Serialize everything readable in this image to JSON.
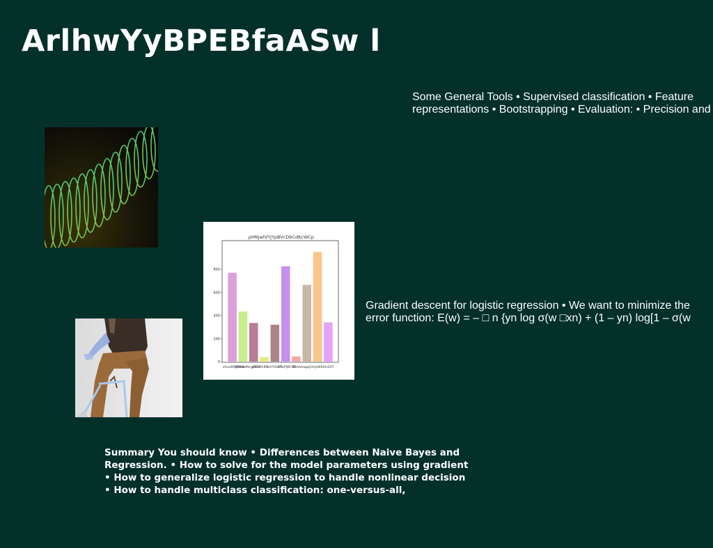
{
  "slide": {
    "title": "ArlhwYyBPEBfaASw l",
    "text_top": [
      "Some General Tools • Supervised classification • Feature",
      "representations • Bootstrapping • Evaluation: • Precision and"
    ],
    "text_mid": [
      "Gradient descent for logistic regression • We want to minimize the",
      "error function: E(w) = – □ n {yn log σ(w □xn) + (1 – yn) log[1 – σ(w"
    ],
    "summary": [
      "Summary You should know • Differences between Naive Bayes and",
      "Regression. • How to solve for the model parameters using gradient",
      "• How to generalize logistic regression to handle nonlinear decision",
      "• How to handle multiclass classification: one-versus-all,"
    ]
  },
  "chart_data": {
    "type": "bar",
    "title": "pHNjwlVYjYpBVcDbCdKcWCp",
    "categories": [
      "xtsxzDYKKkIN",
      "sjWkwdNcgIfDU",
      "jrkFWhIFli",
      "rAvHYdoBK",
      "ETxPJWCDt",
      "XSAwIeqp",
      "cjGhjsN",
      "lKStsZdT",
      "bar9",
      "bar10"
    ],
    "values": [
      770,
      435,
      335,
      40,
      320,
      825,
      45,
      665,
      950,
      340
    ],
    "colors": [
      "#dda0dd",
      "#c7ee8a",
      "#b77c9a",
      "#e4ec7e",
      "#ab8585",
      "#c58ff0",
      "#f2a8a8",
      "#c8b6a6",
      "#fbc58a",
      "#e6a3f8"
    ],
    "tick_labels_x": [
      "xtsxzDYKKkIN",
      "sjWkwdNcgIfDU",
      "jrkFWhIFli",
      "rAvHYdoBK",
      "ETxPJWCDt",
      "XSAwIeqp",
      "cjGhjsN",
      "lKStsZdT"
    ],
    "yticks": [
      0,
      200,
      400,
      600,
      800
    ],
    "ylim": [
      0,
      1000
    ],
    "grid": false
  },
  "images": {
    "spiral": "abstract-green-spiral",
    "photo": "person-seated-on-chair",
    "chart": "bar-chart"
  }
}
